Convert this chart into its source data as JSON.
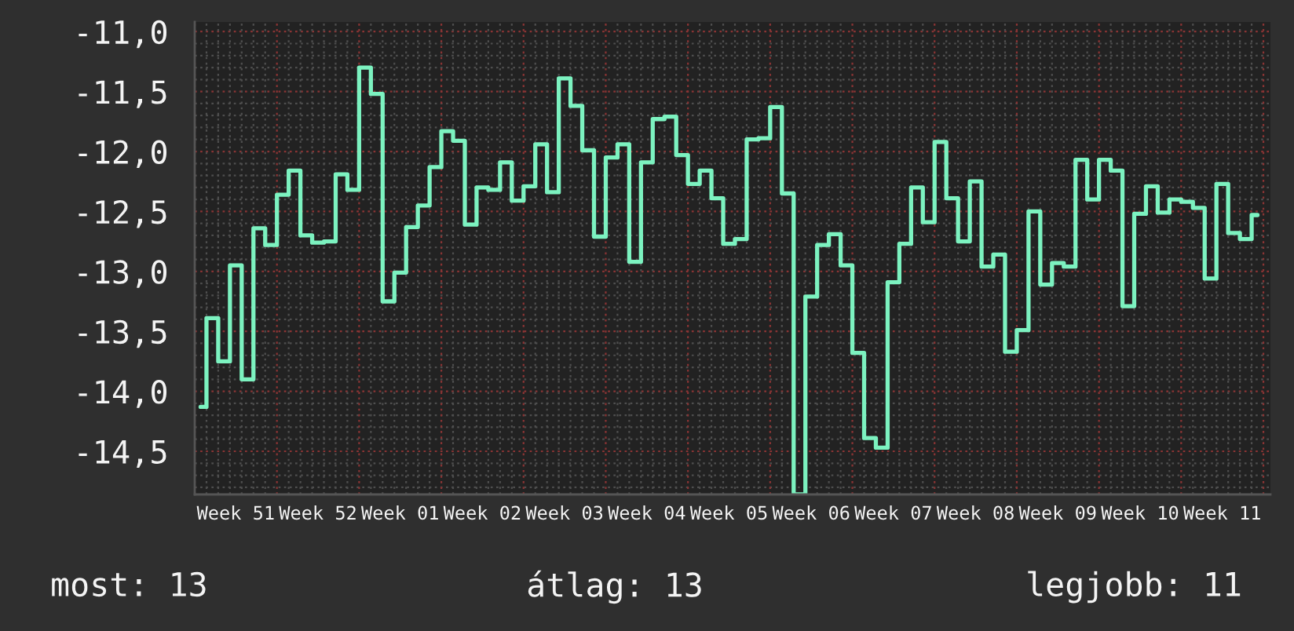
{
  "chart_data": {
    "type": "step",
    "categories": [
      null,
      null,
      null,
      "Week 51",
      null,
      null,
      null,
      null,
      null,
      null,
      "Week 52",
      null,
      null,
      null,
      null,
      null,
      null,
      "Week 01",
      null,
      null,
      null,
      null,
      null,
      null,
      "Week 02",
      null,
      null,
      null,
      null,
      null,
      null,
      "Week 03",
      null,
      null,
      null,
      null,
      null,
      null,
      "Week 04",
      null,
      null,
      null,
      null,
      null,
      null,
      "Week 05",
      null,
      null,
      null,
      null,
      null,
      null,
      "Week 06",
      null,
      null,
      null,
      null,
      null,
      null,
      "Week 07",
      null,
      null,
      null,
      null,
      null,
      null,
      "Week 08",
      null,
      null,
      null,
      null,
      null,
      null,
      "Week 09",
      null,
      null,
      null,
      null,
      null,
      null,
      "Week 10",
      null,
      null,
      null,
      null,
      null,
      null,
      "Week 11",
      null,
      null,
      null
    ],
    "values": [
      -14.13,
      -13.39,
      -13.75,
      -12.95,
      -13.9,
      -12.64,
      -12.78,
      -12.36,
      -12.16,
      -12.7,
      -12.76,
      -12.75,
      -12.19,
      -12.32,
      -11.3,
      -11.52,
      -13.25,
      -13.01,
      -12.63,
      -12.45,
      -12.13,
      -11.83,
      -11.91,
      -12.61,
      -12.3,
      -12.32,
      -12.09,
      -12.41,
      -12.29,
      -11.94,
      -12.34,
      -11.39,
      -11.62,
      -11.99,
      -12.71,
      -12.05,
      -11.94,
      -12.92,
      -12.09,
      -11.73,
      -11.71,
      -12.03,
      -12.27,
      -12.16,
      -12.39,
      -12.77,
      -12.73,
      -11.9,
      -11.89,
      -11.63,
      -12.35,
      -14.86,
      -13.21,
      -12.78,
      -12.69,
      -12.95,
      -13.68,
      -14.39,
      -14.47,
      -13.09,
      -12.77,
      -12.3,
      -12.59,
      -11.92,
      -12.39,
      -12.75,
      -12.25,
      -12.96,
      -12.86,
      -13.67,
      -13.49,
      -12.5,
      -13.11,
      -12.93,
      -12.96,
      -12.07,
      -12.4,
      -12.07,
      -12.16,
      -13.29,
      -12.52,
      -12.29,
      -12.51,
      -12.4,
      -12.42,
      -12.47,
      -13.06,
      -12.27,
      -12.68,
      -12.73,
      -12.53
    ],
    "color": "#7cf2c0",
    "ylim": [
      -14.86,
      -10.92
    ],
    "yticks": [
      {
        "value": -11.0,
        "label": "-11,0"
      },
      {
        "value": -11.1,
        "label": null
      },
      {
        "value": -11.2,
        "label": null
      },
      {
        "value": -11.3,
        "label": null
      },
      {
        "value": -11.4,
        "label": null
      },
      {
        "value": -11.5,
        "label": "-11,5"
      },
      {
        "value": -11.6,
        "label": null
      },
      {
        "value": -11.7,
        "label": null
      },
      {
        "value": -11.8,
        "label": null
      },
      {
        "value": -11.9,
        "label": null
      },
      {
        "value": -12.0,
        "label": "-12,0"
      },
      {
        "value": -12.1,
        "label": null
      },
      {
        "value": -12.2,
        "label": null
      },
      {
        "value": -12.3,
        "label": null
      },
      {
        "value": -12.4,
        "label": null
      },
      {
        "value": -12.5,
        "label": "-12,5"
      },
      {
        "value": -12.6,
        "label": null
      },
      {
        "value": -12.7,
        "label": null
      },
      {
        "value": -12.8,
        "label": null
      },
      {
        "value": -12.9,
        "label": null
      },
      {
        "value": -13.0,
        "label": "-13,0"
      },
      {
        "value": -13.1,
        "label": null
      },
      {
        "value": -13.2,
        "label": null
      },
      {
        "value": -13.3,
        "label": null
      },
      {
        "value": -13.4,
        "label": null
      },
      {
        "value": -13.5,
        "label": "-13,5"
      },
      {
        "value": -13.6,
        "label": null
      },
      {
        "value": -13.7,
        "label": null
      },
      {
        "value": -13.8,
        "label": null
      },
      {
        "value": -13.9,
        "label": null
      },
      {
        "value": -14.0,
        "label": "-14,0"
      },
      {
        "value": -14.1,
        "label": null
      },
      {
        "value": -14.2,
        "label": null
      },
      {
        "value": -14.3,
        "label": null
      },
      {
        "value": -14.4,
        "label": null
      },
      {
        "value": -14.5,
        "label": "-14,5"
      },
      {
        "value": -14.6,
        "label": null
      },
      {
        "value": -14.7,
        "label": null
      },
      {
        "value": -14.8,
        "label": null
      }
    ],
    "grid": true,
    "annotations": [
      "most: 13",
      "átlag: 13",
      "legjobb: 11"
    ]
  }
}
